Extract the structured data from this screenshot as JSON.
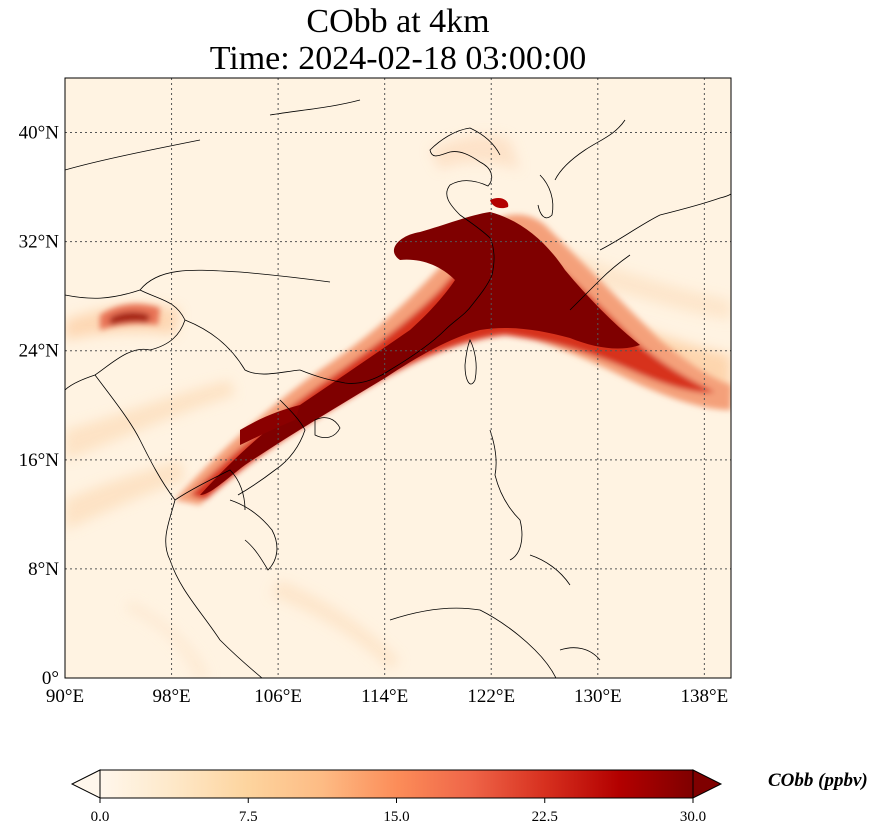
{
  "title": {
    "line1": "CObb at 4km",
    "line2": "Time: 2024-02-18 03:00:00"
  },
  "map": {
    "lon_range": [
      90,
      140
    ],
    "lat_range": [
      0,
      44
    ],
    "lon_ticks": [
      {
        "value": 90,
        "label": "90°E"
      },
      {
        "value": 98,
        "label": "98°E"
      },
      {
        "value": 106,
        "label": "106°E"
      },
      {
        "value": 114,
        "label": "114°E"
      },
      {
        "value": 122,
        "label": "122°E"
      },
      {
        "value": 130,
        "label": "130°E"
      },
      {
        "value": 138,
        "label": "138°E"
      }
    ],
    "lat_ticks": [
      {
        "value": 0,
        "label": "0°"
      },
      {
        "value": 8,
        "label": "8°N"
      },
      {
        "value": 16,
        "label": "16°N"
      },
      {
        "value": 24,
        "label": "24°N"
      },
      {
        "value": 32,
        "label": "32°N"
      },
      {
        "value": 40,
        "label": "40°N"
      }
    ],
    "gridlines": true,
    "colormap": "OrRd"
  },
  "colorbar": {
    "label": "CObb (ppbv)",
    "min": 0.0,
    "max": 30.0,
    "ticks": [
      "0.0",
      "7.5",
      "15.0",
      "22.5",
      "30.0"
    ],
    "extend": "both",
    "colors": [
      "#fff7ec",
      "#fee8c8",
      "#fdd49e",
      "#fdbb84",
      "#fc8d59",
      "#ef6548",
      "#d7301f",
      "#b30000",
      "#7f0000"
    ]
  }
}
